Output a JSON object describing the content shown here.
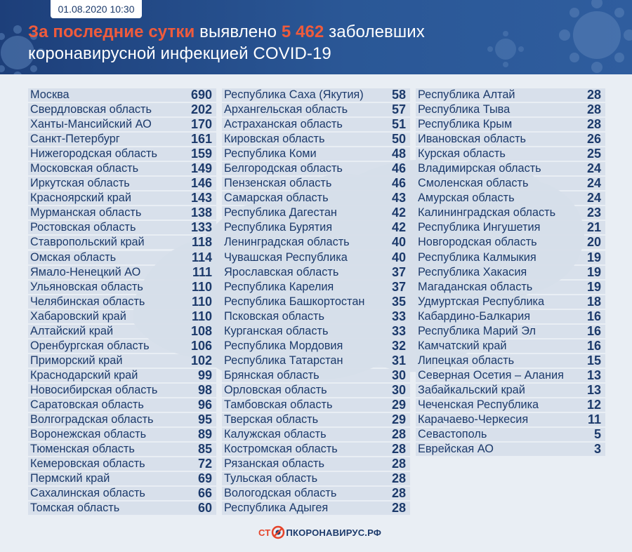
{
  "header": {
    "date": "01.08.2020 10:30",
    "headline_accent_1": "За последние сутки",
    "headline_mid": " выявлено ",
    "headline_accent_2": "5 462",
    "headline_end_1": " заболевших",
    "headline_line2": "коронавирусной инфекцией COVID-19"
  },
  "colors": {
    "header_bg": "#2a5796",
    "accent": "#ef5b3c",
    "text": "#1c3a6b",
    "row_bg": "#d6dee9",
    "page_bg": "#e9eef4"
  },
  "columns": [
    [
      {
        "region": "Москва",
        "count": "690"
      },
      {
        "region": "Свердловская область",
        "count": "202"
      },
      {
        "region": "Ханты-Мансийский АО",
        "count": "170"
      },
      {
        "region": "Санкт-Петербург",
        "count": "161"
      },
      {
        "region": "Нижегородская область",
        "count": "159"
      },
      {
        "region": "Московская область",
        "count": "149"
      },
      {
        "region": "Иркутская область",
        "count": "146"
      },
      {
        "region": "Красноярский край",
        "count": "143"
      },
      {
        "region": "Мурманская область",
        "count": "138"
      },
      {
        "region": "Ростовская область",
        "count": "133"
      },
      {
        "region": "Ставропольский край",
        "count": "118"
      },
      {
        "region": "Омская область",
        "count": "114"
      },
      {
        "region": "Ямало-Ненецкий АО",
        "count": "111"
      },
      {
        "region": "Ульяновская область",
        "count": "110"
      },
      {
        "region": "Челябинская область",
        "count": "110"
      },
      {
        "region": "Хабаровский край",
        "count": "110"
      },
      {
        "region": "Алтайский край",
        "count": "108"
      },
      {
        "region": "Оренбургская область",
        "count": "106"
      },
      {
        "region": "Приморский край",
        "count": "102"
      },
      {
        "region": "Краснодарский край",
        "count": "99"
      },
      {
        "region": "Новосибирская область",
        "count": "98"
      },
      {
        "region": "Саратовская область",
        "count": "96"
      },
      {
        "region": "Волгоградская область",
        "count": "95"
      },
      {
        "region": "Воронежская область",
        "count": "89"
      },
      {
        "region": "Тюменская область",
        "count": "85"
      },
      {
        "region": "Кемеровская область",
        "count": "72"
      },
      {
        "region": "Пермский край",
        "count": "69"
      },
      {
        "region": "Сахалинская область",
        "count": "66"
      },
      {
        "region": "Томская область",
        "count": "60"
      }
    ],
    [
      {
        "region": "Республика Саха (Якутия)",
        "count": "58"
      },
      {
        "region": "Архангельская область",
        "count": "57"
      },
      {
        "region": "Астраханская область",
        "count": "51"
      },
      {
        "region": "Кировская область",
        "count": "50"
      },
      {
        "region": "Республика Коми",
        "count": "48"
      },
      {
        "region": "Белгородская область",
        "count": "46"
      },
      {
        "region": "Пензенская область",
        "count": "46"
      },
      {
        "region": "Самарская область",
        "count": "43"
      },
      {
        "region": "Республика Дагестан",
        "count": "42"
      },
      {
        "region": "Республика Бурятия",
        "count": "42"
      },
      {
        "region": "Ленинградская область",
        "count": "40"
      },
      {
        "region": "Чувашская Республика",
        "count": "40"
      },
      {
        "region": "Ярославская область",
        "count": "37"
      },
      {
        "region": "Республика Карелия",
        "count": "37"
      },
      {
        "region": "Республика Башкортостан",
        "count": "35"
      },
      {
        "region": "Псковская область",
        "count": "33"
      },
      {
        "region": "Курганская область",
        "count": "33"
      },
      {
        "region": "Республика Мордовия",
        "count": "32"
      },
      {
        "region": "Республика Татарстан",
        "count": "31"
      },
      {
        "region": "Брянская область",
        "count": "30"
      },
      {
        "region": "Орловская область",
        "count": "30"
      },
      {
        "region": "Тамбовская область",
        "count": "29"
      },
      {
        "region": "Тверская область",
        "count": "29"
      },
      {
        "region": "Калужская область",
        "count": "28"
      },
      {
        "region": "Костромская область",
        "count": "28"
      },
      {
        "region": "Рязанская область",
        "count": "28"
      },
      {
        "region": "Тульская область",
        "count": "28"
      },
      {
        "region": "Вологодская область",
        "count": "28"
      },
      {
        "region": "Республика Адыгея",
        "count": "28"
      }
    ],
    [
      {
        "region": "Республика Алтай",
        "count": "28"
      },
      {
        "region": "Республика Тыва",
        "count": "28"
      },
      {
        "region": "Республика Крым",
        "count": "28"
      },
      {
        "region": "Ивановская область",
        "count": "26"
      },
      {
        "region": "Курская область",
        "count": "25"
      },
      {
        "region": "Владимирская область",
        "count": "24"
      },
      {
        "region": "Смоленская область",
        "count": "24"
      },
      {
        "region": "Амурская область",
        "count": "24"
      },
      {
        "region": "Калининградская область",
        "count": "23"
      },
      {
        "region": "Республика Ингушетия",
        "count": "21"
      },
      {
        "region": "Новгородская область",
        "count": "20"
      },
      {
        "region": "Республика Калмыкия",
        "count": "19"
      },
      {
        "region": "Республика Хакасия",
        "count": "19"
      },
      {
        "region": "Магаданская область",
        "count": "19"
      },
      {
        "region": "Удмуртская Республика",
        "count": "18"
      },
      {
        "region": "Кабардино-Балкария",
        "count": "16"
      },
      {
        "region": "Республика Марий Эл",
        "count": "16"
      },
      {
        "region": "Камчатский край",
        "count": "16"
      },
      {
        "region": "Липецкая область",
        "count": "15"
      },
      {
        "region": "Северная Осетия – Алания",
        "count": "13"
      },
      {
        "region": "Забайкальский край",
        "count": "13"
      },
      {
        "region": "Чеченская Республика",
        "count": "12"
      },
      {
        "region": "Карачаево-Черкесия",
        "count": "11"
      },
      {
        "region": "Севастополь",
        "count": "5"
      },
      {
        "region": "Еврейская АО",
        "count": "3"
      }
    ]
  ],
  "footer": {
    "logo_part1": "СТ",
    "logo_part2": "ПКОРОНАВИРУС.РФ",
    "logo_icon": "stop-virus-icon"
  }
}
